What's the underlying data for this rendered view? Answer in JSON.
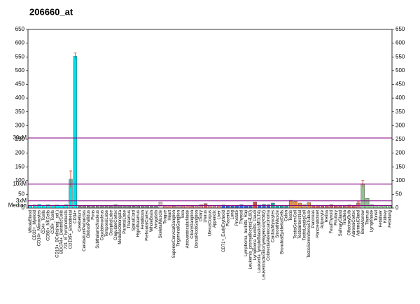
{
  "chart_data": {
    "type": "bar",
    "title": "206660_at",
    "categories": [
      "WholeBlood",
      "CD33+_Myeloid",
      "CD14+_Monocytes",
      "CD4+_Tcells",
      "CD56+_NKCells",
      "CD8+_Tcells",
      "CD19+_BCells(neg._sel.)",
      "BDCA4+_DentriticCells",
      "721_B_lymphoblasts",
      "CD105+_Endothelial",
      "CD34+",
      "Cerebellum",
      "CerebellumPeduncles",
      "GlobusPallidus",
      "Pons",
      "SubthalamicNucleus",
      "Caudatenucleus",
      "TemporalLobe",
      "OccipitalLobe",
      "CingulateCortex",
      "MedullaOblongata",
      "ParietalLobe",
      "Thalamus",
      "SpinalCord",
      "Hypothalamus",
      "FetalBrain",
      "PrefrontalCortex",
      "WholeBrain",
      "Amygdala",
      "SkeletalMuscle",
      "Tongue",
      "Heart",
      "SuperiorCervicalGanglion",
      "TrigeminalGanglion",
      "Skin",
      "AtrioventricularNode",
      "CiliaryGanglion",
      "DorsalRootGanglion",
      "Ovary",
      "Uterus",
      "UterusCorpus",
      "Appendix",
      "Liver",
      "CD71+_EarlyErythroid",
      "Placenta",
      "Lung",
      "Prostate",
      "Thyroid",
      "Lymphoma_burkitts_Raji",
      "Leukemia_promyelocytic(HL60)",
      "Lymphoma_burkitts_Daudi",
      "Leukemia_lymphoblastic(MOLT4)",
      "Leukemiachronicmyelogenous(K562)",
      "ColorectalAdenocarcinoma",
      "CardiacMyocytes",
      "SmoothMuscle",
      "BronchialEpithelialCells",
      "Colon",
      "Testis",
      "TestisGermCell",
      "TestisInterstitial",
      "TestisLeydigCell",
      "TestisSeminiferousTubule",
      "Pancreas",
      "PancreaticIslet",
      "Adipocyte",
      "Retina",
      "FetalThyroid",
      "Pituitary",
      "SalivaryGland",
      "Trachea",
      "OlfactoryBulb",
      "AdrenalCortex",
      "AdrenalGland",
      "BoneMarrow",
      "Thymus",
      "Lymphnode",
      "Tonsil",
      "Fetalliver",
      "Kidney",
      "Fetallung"
    ],
    "values": [
      10,
      11,
      13,
      9,
      12,
      10,
      11,
      9,
      12,
      105,
      552,
      8,
      9,
      7,
      8,
      9,
      8,
      10,
      9,
      12,
      8,
      9,
      8,
      7,
      9,
      10,
      8,
      9,
      8,
      22,
      8,
      9,
      7,
      9,
      8,
      10,
      7,
      9,
      12,
      16,
      9,
      8,
      10,
      11,
      8,
      9,
      10,
      12,
      9,
      10,
      22,
      11,
      13,
      12,
      18,
      10,
      9,
      8,
      28,
      24,
      18,
      12,
      20,
      9,
      10,
      8,
      9,
      12,
      9,
      8,
      10,
      11,
      9,
      18,
      88,
      35,
      12,
      9,
      8,
      10,
      9
    ],
    "errors": [
      null,
      null,
      null,
      null,
      null,
      null,
      null,
      null,
      null,
      30,
      12,
      null,
      null,
      null,
      null,
      null,
      null,
      null,
      null,
      null,
      null,
      null,
      null,
      null,
      null,
      null,
      null,
      null,
      null,
      null,
      null,
      null,
      null,
      null,
      null,
      null,
      null,
      null,
      null,
      null,
      null,
      null,
      null,
      null,
      null,
      null,
      null,
      null,
      null,
      null,
      null,
      null,
      null,
      null,
      null,
      null,
      null,
      null,
      null,
      null,
      null,
      null,
      null,
      null,
      null,
      null,
      null,
      null,
      null,
      null,
      null,
      null,
      null,
      5,
      12,
      null,
      null,
      null,
      null,
      null,
      null
    ],
    "colors": [
      "#00e0e8",
      "#00e0e8",
      "#00e0e8",
      "#00e0e8",
      "#00e0e8",
      "#00e0e8",
      "#00e0e8",
      "#00e0e8",
      "#00e0e8",
      "#00e0e8",
      "#00e0e8",
      "#808080",
      "#808080",
      "#808080",
      "#808080",
      "#808080",
      "#808080",
      "#808080",
      "#808080",
      "#808080",
      "#808080",
      "#808080",
      "#808080",
      "#808080",
      "#808080",
      "#808080",
      "#808080",
      "#808080",
      "#808080",
      "#e0c0c0",
      "#d08080",
      "#d08080",
      "#d08080",
      "#d08080",
      "#d08080",
      "#d08080",
      "#d08080",
      "#d08080",
      "#d08080",
      "#d06060",
      "#d08080",
      "#d08080",
      "#d08080",
      "#3060d0",
      "#3060d0",
      "#3060d0",
      "#3060d0",
      "#3060d0",
      "#3060d0",
      "#3060d0",
      "#e04040",
      "#3060d0",
      "#3060d0",
      "#3060d0",
      "#20a0a0",
      "#20a0a0",
      "#20a0a0",
      "#20a0a0",
      "#e09040",
      "#e09040",
      "#e09040",
      "#e09040",
      "#e09040",
      "#c06060",
      "#c06060",
      "#c06060",
      "#c06060",
      "#c06060",
      "#c06060",
      "#c06060",
      "#c06060",
      "#c06060",
      "#c06060",
      "#e07070",
      "#90c090",
      "#90c090",
      "#90c090",
      "#90c090",
      "#90c090",
      "#90c090",
      "#90c090"
    ],
    "ylim": [
      0,
      650
    ],
    "yticks": [
      0,
      50,
      100,
      150,
      200,
      250,
      300,
      350,
      400,
      450,
      500,
      550,
      600,
      650
    ],
    "reference_lines": [
      {
        "label": "30xM",
        "value": 255
      },
      {
        "label": "10xM",
        "value": 87
      },
      {
        "label": "3xM",
        "value": 26
      },
      {
        "label": "Median",
        "value": 9
      }
    ],
    "reference_color": "#800080",
    "error_color": "#d04020"
  }
}
